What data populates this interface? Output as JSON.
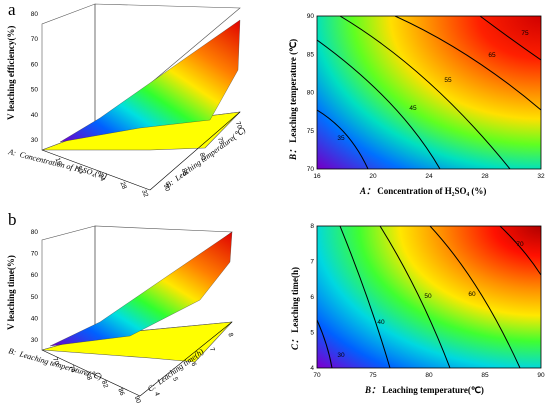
{
  "chart_data": [
    {
      "panel": "a",
      "type": "surface",
      "zlabel": "V leaching efficiency(%)",
      "xlabel": "Concentration of H₂SO₄(%)",
      "xlabel_prefix": "A:",
      "ylabel": "Leaching temperature(℃)",
      "ylabel_prefix": "B:",
      "zticks": [
        "80",
        "70",
        "60",
        "50",
        "40",
        "30"
      ],
      "xticks": [
        "16",
        "20",
        "24",
        "28",
        "32"
      ],
      "yticks": [
        "90",
        "85",
        "80",
        "75",
        "70"
      ],
      "zlim": [
        30,
        80
      ],
      "colorscale": [
        "#6a00c8",
        "#0033ff",
        "#00d0ff",
        "#00ff40",
        "#ffff00",
        "#ff8000",
        "#ff0000"
      ]
    },
    {
      "panel": "",
      "type": "contour",
      "xlabel": "Concentration of H₂SO₄ (%)",
      "xlabel_prefix": "A：",
      "ylabel": "Leaching temperature (℃)",
      "ylabel_prefix": "B：",
      "xticks": [
        "16",
        "20",
        "24",
        "28",
        "32"
      ],
      "yticks": [
        "90",
        "85",
        "80",
        "75",
        "70"
      ],
      "xlim": [
        16,
        32
      ],
      "ylim": [
        70,
        90
      ],
      "contour_levels": [
        "75",
        "65",
        "55",
        "45",
        "35"
      ]
    },
    {
      "panel": "b",
      "type": "surface",
      "zlabel": "V leaching time(%)",
      "xlabel": "Leaching temperature(℃)",
      "xlabel_prefix": "B:",
      "ylabel": "Leaching time(h)",
      "ylabel_prefix": "C:",
      "zticks": [
        "80",
        "70",
        "60",
        "50",
        "40",
        "30"
      ],
      "xticks": [
        "70",
        "74",
        "78",
        "82",
        "86",
        "90"
      ],
      "yticks": [
        "4",
        "5",
        "6",
        "7",
        "8"
      ],
      "zlim": [
        30,
        80
      ]
    },
    {
      "panel": "",
      "type": "contour",
      "xlabel": "Leaching temperature(℃)",
      "xlabel_prefix": "B：",
      "ylabel": "Leaching time(h)",
      "ylabel_prefix": "C：",
      "xticks": [
        "70",
        "75",
        "80",
        "85",
        "90"
      ],
      "yticks": [
        "8",
        "7",
        "6",
        "5",
        "4"
      ],
      "xlim": [
        70,
        90
      ],
      "ylim": [
        4,
        8
      ],
      "contour_levels": [
        "70",
        "60",
        "50",
        "40",
        "30"
      ]
    }
  ]
}
